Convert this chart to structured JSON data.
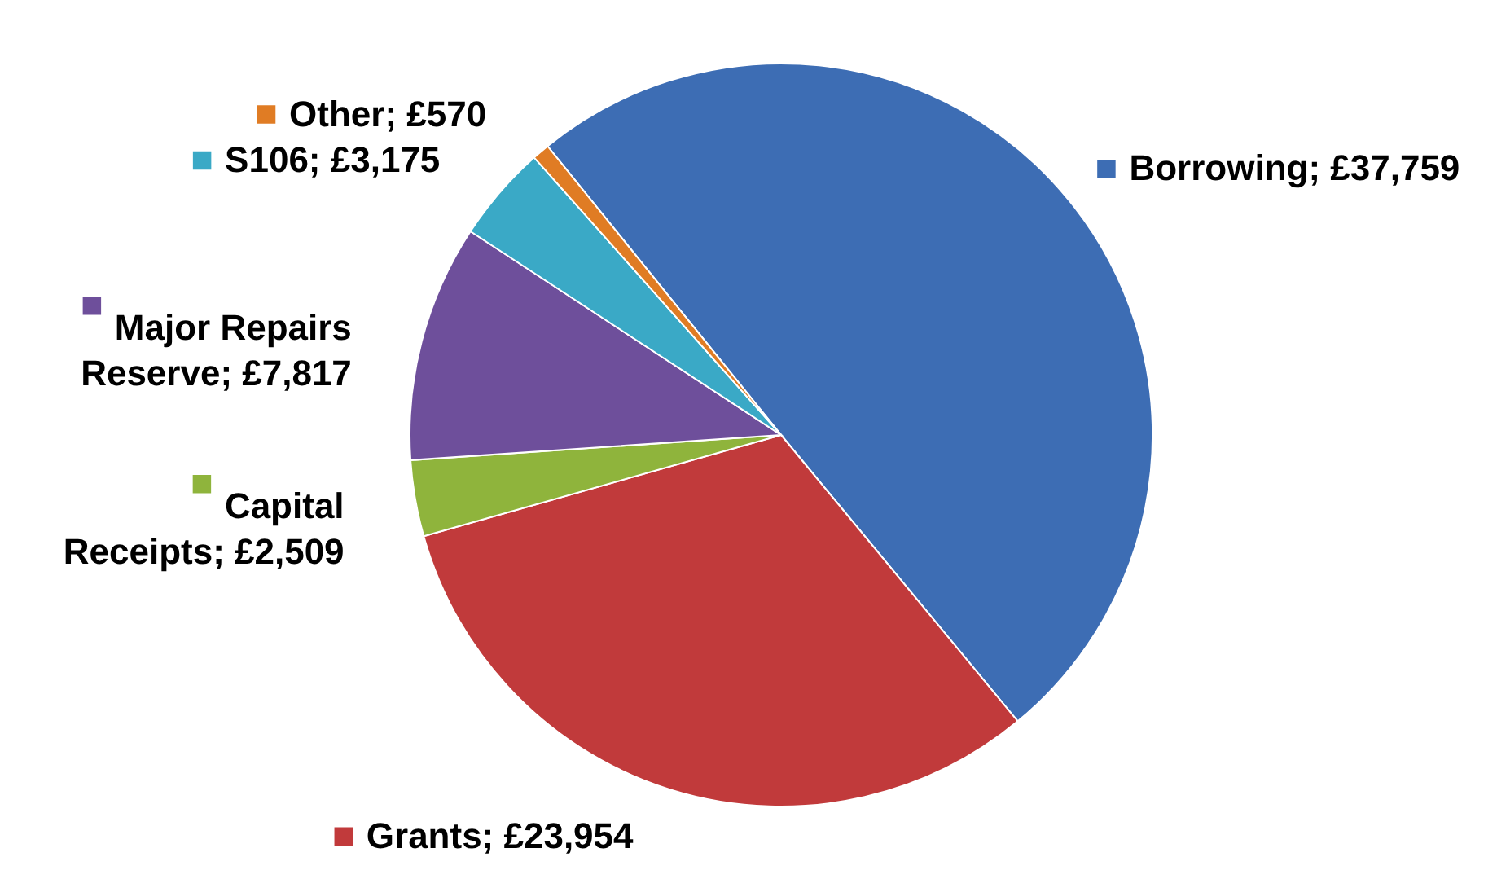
{
  "chart_data": {
    "type": "pie",
    "categories": [
      "Borrowing",
      "Grants",
      "Capital Receipts",
      "Major Repairs Reserve",
      "S106",
      "Other"
    ],
    "values": [
      37759,
      23954,
      2509,
      7817,
      3175,
      570
    ],
    "value_labels": [
      "£37,759",
      "£23,954",
      "£2,509",
      "£7,817",
      "£3,175",
      "£570"
    ],
    "legend": "left",
    "colors": [
      "#3d6db4",
      "#c13a3b",
      "#8fb43c",
      "#6e4f9b",
      "#3aa9c6",
      "#e07c24"
    ]
  }
}
